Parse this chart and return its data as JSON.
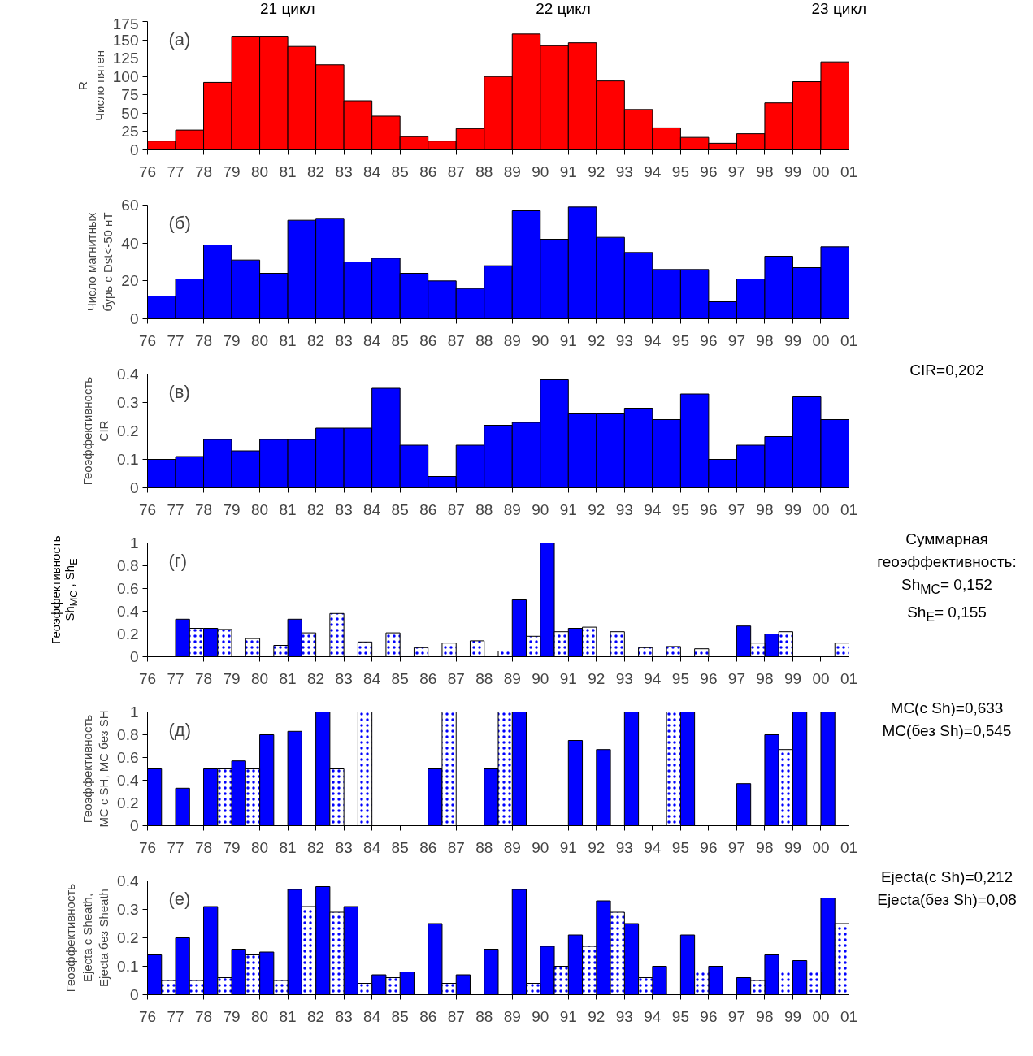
{
  "chart_data": [
    {
      "type": "histogram",
      "ylabel": "R\nЧисло пятен",
      "color": "#ff0000",
      "bins": [
        1976,
        1977,
        1978,
        1979,
        1980,
        1981,
        1982,
        1983,
        1984,
        1985,
        1986,
        1987,
        1988,
        1989,
        1990,
        1991,
        1992,
        1993,
        1994,
        1995,
        1996,
        1997,
        1998,
        1999,
        2000,
        2001
      ],
      "values": [
        12,
        27,
        92,
        155,
        155,
        141,
        116,
        67,
        46,
        18,
        12,
        29,
        100,
        158,
        142,
        146,
        94,
        55,
        30,
        17,
        9,
        22,
        64,
        93,
        120
      ],
      "xlim": [
        1976,
        2001
      ],
      "ylim": [
        0,
        175
      ],
      "yticks": [
        0,
        25,
        50,
        75,
        100,
        125,
        150,
        175
      ],
      "xticks": [
        {
          "value": 1976,
          "label": "76"
        },
        {
          "value": 1977,
          "label": "77"
        },
        {
          "value": 1978,
          "label": "78"
        },
        {
          "value": 1979,
          "label": "79"
        },
        {
          "value": 1980,
          "label": "80"
        },
        {
          "value": 1981,
          "label": "81"
        },
        {
          "value": 1982,
          "label": "82"
        },
        {
          "value": 1983,
          "label": "83"
        },
        {
          "value": 1984,
          "label": "84"
        },
        {
          "value": 1985,
          "label": "85"
        },
        {
          "value": 1986,
          "label": "86"
        },
        {
          "value": 1987,
          "label": "87"
        },
        {
          "value": 1988,
          "label": "88"
        },
        {
          "value": 1989,
          "label": "89"
        },
        {
          "value": 1990,
          "label": "90"
        },
        {
          "value": 1991,
          "label": "91"
        },
        {
          "value": 1992,
          "label": "92"
        },
        {
          "value": 1993,
          "label": "93"
        },
        {
          "value": 1994,
          "label": "94"
        },
        {
          "value": 1995,
          "label": "95"
        },
        {
          "value": 1996,
          "label": "96"
        },
        {
          "value": 1997,
          "label": "97"
        },
        {
          "value": 1998,
          "label": "98"
        },
        {
          "value": 1999,
          "label": "99"
        },
        {
          "value": 2000,
          "label": "00"
        },
        {
          "value": 2001,
          "label": "01"
        }
      ],
      "annotations": [
        "(а)",
        "21 цикл",
        "22 цикл",
        "23 цикл"
      ]
    },
    {
      "type": "histogram",
      "ylabel": "Число магнитных\nбурь с Dst<-50 нТ",
      "color": "#0000ff",
      "bins": [
        1976,
        1977,
        1978,
        1979,
        1980,
        1981,
        1982,
        1983,
        1984,
        1985,
        1986,
        1987,
        1988,
        1989,
        1990,
        1991,
        1992,
        1993,
        1994,
        1995,
        1996,
        1997,
        1998,
        1999,
        2000,
        2001
      ],
      "values": [
        12,
        21,
        39,
        31,
        24,
        52,
        53,
        30,
        32,
        24,
        20,
        16,
        28,
        57,
        42,
        59,
        43,
        35,
        26,
        26,
        9,
        21,
        33,
        27,
        38
      ],
      "xlim": [
        1976,
        2001
      ],
      "ylim": [
        0,
        60
      ],
      "yticks": [
        0,
        20,
        40,
        60
      ],
      "xticks": [
        {
          "value": 1976,
          "label": "76"
        },
        {
          "value": 1977,
          "label": "77"
        },
        {
          "value": 1978,
          "label": "78"
        },
        {
          "value": 1979,
          "label": "79"
        },
        {
          "value": 1980,
          "label": "80"
        },
        {
          "value": 1981,
          "label": "81"
        },
        {
          "value": 1982,
          "label": "82"
        },
        {
          "value": 1983,
          "label": "83"
        },
        {
          "value": 1984,
          "label": "84"
        },
        {
          "value": 1985,
          "label": "85"
        },
        {
          "value": 1986,
          "label": "86"
        },
        {
          "value": 1987,
          "label": "87"
        },
        {
          "value": 1988,
          "label": "88"
        },
        {
          "value": 1989,
          "label": "89"
        },
        {
          "value": 1990,
          "label": "90"
        },
        {
          "value": 1991,
          "label": "91"
        },
        {
          "value": 1992,
          "label": "92"
        },
        {
          "value": 1993,
          "label": "93"
        },
        {
          "value": 1994,
          "label": "94"
        },
        {
          "value": 1995,
          "label": "95"
        },
        {
          "value": 1996,
          "label": "96"
        },
        {
          "value": 1997,
          "label": "97"
        },
        {
          "value": 1998,
          "label": "98"
        },
        {
          "value": 1999,
          "label": "99"
        },
        {
          "value": 2000,
          "label": "00"
        },
        {
          "value": 2001,
          "label": "01"
        }
      ],
      "annotations": [
        "(б)"
      ]
    },
    {
      "type": "histogram",
      "ylabel": "Геоэффективность\nCIR",
      "color": "#0000ff",
      "bins": [
        1976,
        1977,
        1978,
        1979,
        1980,
        1981,
        1982,
        1983,
        1984,
        1985,
        1986,
        1987,
        1988,
        1989,
        1990,
        1991,
        1992,
        1993,
        1994,
        1995,
        1996,
        1997,
        1998,
        1999,
        2000,
        2001
      ],
      "values": [
        0.1,
        0.11,
        0.17,
        0.13,
        0.17,
        0.17,
        0.21,
        0.21,
        0.35,
        0.15,
        0.04,
        0.15,
        0.22,
        0.23,
        0.38,
        0.26,
        0.26,
        0.28,
        0.24,
        0.33,
        0.1,
        0.15,
        0.18,
        0.32,
        0.24
      ],
      "xlim": [
        1976,
        2001
      ],
      "ylim": [
        0,
        0.4
      ],
      "yticks": [
        0,
        0.1,
        0.2,
        0.3,
        0.4
      ],
      "xticks": [
        {
          "value": 1976,
          "label": "76"
        },
        {
          "value": 1977,
          "label": "77"
        },
        {
          "value": 1978,
          "label": "78"
        },
        {
          "value": 1979,
          "label": "79"
        },
        {
          "value": 1980,
          "label": "80"
        },
        {
          "value": 1981,
          "label": "81"
        },
        {
          "value": 1982,
          "label": "82"
        },
        {
          "value": 1983,
          "label": "83"
        },
        {
          "value": 1984,
          "label": "84"
        },
        {
          "value": 1985,
          "label": "85"
        },
        {
          "value": 1986,
          "label": "86"
        },
        {
          "value": 1987,
          "label": "87"
        },
        {
          "value": 1988,
          "label": "88"
        },
        {
          "value": 1989,
          "label": "89"
        },
        {
          "value": 1990,
          "label": "90"
        },
        {
          "value": 1991,
          "label": "91"
        },
        {
          "value": 1992,
          "label": "92"
        },
        {
          "value": 1993,
          "label": "93"
        },
        {
          "value": 1994,
          "label": "94"
        },
        {
          "value": 1995,
          "label": "95"
        },
        {
          "value": 1996,
          "label": "96"
        },
        {
          "value": 1997,
          "label": "97"
        },
        {
          "value": 1998,
          "label": "98"
        },
        {
          "value": 1999,
          "label": "99"
        },
        {
          "value": 2000,
          "label": "00"
        },
        {
          "value": 2001,
          "label": "01"
        }
      ],
      "annotations": [
        "(в)",
        "CIR=0,202"
      ]
    },
    {
      "type": "bar",
      "ylabel": "Геоэффективность\nSh$_{MC}$ , Sh$_{E}$",
      "xlim": [
        1976,
        2001
      ],
      "ylim": [
        0,
        1
      ],
      "yticks": [
        0,
        0.2,
        0.4,
        0.6,
        0.8,
        1
      ],
      "series": [
        {
          "color": "#0000ff",
          "x": [
            1977.25,
            1978.25,
            1981.25,
            1989.25,
            1990.25,
            1991.25,
            1997.25,
            1998.25
          ],
          "values": [
            0.33,
            0.25,
            0.33,
            0.5,
            1,
            0.25,
            0.27,
            0.2
          ]
        },
        {
          "color": "#ffffff",
          "x": [
            1977.75,
            1978.75,
            1979.75,
            1980.75,
            1981.75,
            1982.75,
            1983.75,
            1984.75,
            1985.75,
            1986.75,
            1987.75,
            1988.75,
            1989.75,
            1990.75,
            1991.75,
            1992.75,
            1993.75,
            1994.75,
            1995.75,
            1997.75,
            1998.75,
            2000.75
          ],
          "values": [
            0.25,
            0.24,
            0.16,
            0.1,
            0.21,
            0.38,
            0.13,
            0.21,
            0.08,
            0.12,
            0.14,
            0.05,
            0.18,
            0.22,
            0.26,
            0.22,
            0.08,
            0.09,
            0.07,
            0.12,
            0.22,
            0.12
          ]
        }
      ],
      "xticks": [
        {
          "value": 1976,
          "label": "76"
        },
        {
          "value": 1977,
          "label": "77"
        },
        {
          "value": 1978,
          "label": "78"
        },
        {
          "value": 1979,
          "label": "79"
        },
        {
          "value": 1980,
          "label": "80"
        },
        {
          "value": 1981,
          "label": "81"
        },
        {
          "value": 1982,
          "label": "82"
        },
        {
          "value": 1983,
          "label": "83"
        },
        {
          "value": 1984,
          "label": "84"
        },
        {
          "value": 1985,
          "label": "85"
        },
        {
          "value": 1986,
          "label": "86"
        },
        {
          "value": 1987,
          "label": "87"
        },
        {
          "value": 1988,
          "label": "88"
        },
        {
          "value": 1989,
          "label": "89"
        },
        {
          "value": 1990,
          "label": "90"
        },
        {
          "value": 1991,
          "label": "91"
        },
        {
          "value": 1992,
          "label": "92"
        },
        {
          "value": 1993,
          "label": "93"
        },
        {
          "value": 1994,
          "label": "94"
        },
        {
          "value": 1995,
          "label": "95"
        },
        {
          "value": 1996,
          "label": "96"
        },
        {
          "value": 1997,
          "label": "97"
        },
        {
          "value": 1998,
          "label": "98"
        },
        {
          "value": 1999,
          "label": "99"
        },
        {
          "value": 2000,
          "label": "00"
        },
        {
          "value": 2001,
          "label": "01"
        }
      ],
      "annotations": [
        "(г)",
        "Суммарная геоэффективность:",
        "Sh$_{MC}$= 0,152",
        "Sh$_{E}$= 0,155"
      ]
    },
    {
      "type": "bar",
      "ylabel": "Геоэффективность\nMC с SH, MC без SH",
      "xlim": [
        1976,
        2001
      ],
      "ylim": [
        0,
        1
      ],
      "yticks": [
        0,
        0.2,
        0.4,
        0.6,
        0.8,
        1
      ],
      "series": [
        {
          "color": "#0000ff",
          "x": [
            1976.25,
            1977.25,
            1978.25,
            1979.25,
            1980.25,
            1981.25,
            1982.25,
            1986.25,
            1988.25,
            1989.25,
            1991.25,
            1992.25,
            1993.25,
            1995.25,
            1997.25,
            1998.25,
            1999.25,
            2000.25
          ],
          "values": [
            0.5,
            0.33,
            0.5,
            0.57,
            0.8,
            0.83,
            1,
            0.5,
            0.5,
            1,
            0.75,
            0.67,
            1,
            1,
            0.37,
            0.8,
            1,
            1
          ]
        },
        {
          "color": "#ffffff",
          "x": [
            1978.75,
            1979.75,
            1982.75,
            1983.75,
            1986.75,
            1988.75,
            1994.75,
            1998.75
          ],
          "values": [
            0.5,
            0.5,
            0.5,
            1,
            1,
            1,
            1,
            0.67
          ]
        }
      ],
      "xticks": [
        {
          "value": 1976,
          "label": "76"
        },
        {
          "value": 1977,
          "label": "77"
        },
        {
          "value": 1978,
          "label": "78"
        },
        {
          "value": 1979,
          "label": "79"
        },
        {
          "value": 1980,
          "label": "80"
        },
        {
          "value": 1981,
          "label": "81"
        },
        {
          "value": 1982,
          "label": "82"
        },
        {
          "value": 1983,
          "label": "83"
        },
        {
          "value": 1984,
          "label": "84"
        },
        {
          "value": 1985,
          "label": "85"
        },
        {
          "value": 1986,
          "label": "86"
        },
        {
          "value": 1987,
          "label": "87"
        },
        {
          "value": 1988,
          "label": "88"
        },
        {
          "value": 1989,
          "label": "89"
        },
        {
          "value": 1990,
          "label": "90"
        },
        {
          "value": 1991,
          "label": "91"
        },
        {
          "value": 1992,
          "label": "92"
        },
        {
          "value": 1993,
          "label": "93"
        },
        {
          "value": 1994,
          "label": "94"
        },
        {
          "value": 1995,
          "label": "95"
        },
        {
          "value": 1996,
          "label": "96"
        },
        {
          "value": 1997,
          "label": "97"
        },
        {
          "value": 1998,
          "label": "98"
        },
        {
          "value": 1999,
          "label": "99"
        },
        {
          "value": 2000,
          "label": "00"
        },
        {
          "value": 2001,
          "label": "01"
        }
      ],
      "annotations": [
        "(д)",
        "MC(с Sh)=0,633",
        "MC(без Sh)=0,545"
      ]
    },
    {
      "type": "bar",
      "ylabel": "Геоэффективность\nEjecta с Sheath,\nEjecta без Sheath",
      "xlim": [
        1976,
        2001
      ],
      "ylim": [
        0,
        0.4
      ],
      "yticks": [
        0,
        0.1,
        0.2,
        0.3,
        0.4
      ],
      "series": [
        {
          "color": "#0000ff",
          "x": [
            1976.25,
            1977.25,
            1978.25,
            1979.25,
            1980.25,
            1981.25,
            1982.25,
            1983.25,
            1984.25,
            1985.25,
            1986.25,
            1987.25,
            1988.25,
            1989.25,
            1990.25,
            1991.25,
            1992.25,
            1993.25,
            1994.25,
            1995.25,
            1996.25,
            1997.25,
            1998.25,
            1999.25,
            2000.25
          ],
          "values": [
            0.14,
            0.2,
            0.31,
            0.16,
            0.15,
            0.37,
            0.38,
            0.31,
            0.07,
            0.08,
            0.25,
            0.07,
            0.16,
            0.37,
            0.17,
            0.21,
            0.33,
            0.25,
            0.1,
            0.21,
            0.1,
            0.06,
            0.14,
            0.12,
            0.34
          ]
        },
        {
          "color": "#ffffff",
          "x": [
            1976.75,
            1977.75,
            1978.75,
            1979.75,
            1980.75,
            1981.75,
            1982.75,
            1983.75,
            1984.75,
            1986.75,
            1989.75,
            1990.75,
            1991.75,
            1992.75,
            1993.75,
            1995.75,
            1997.75,
            1998.75,
            1999.75,
            2000.75
          ],
          "values": [
            0.05,
            0.05,
            0.06,
            0.14,
            0.05,
            0.31,
            0.29,
            0.04,
            0.06,
            0.04,
            0.04,
            0.1,
            0.17,
            0.29,
            0.06,
            0.08,
            0.05,
            0.08,
            0.08,
            0.25
          ]
        }
      ],
      "xticks": [
        {
          "value": 1976,
          "label": "76"
        },
        {
          "value": 1977,
          "label": "77"
        },
        {
          "value": 1978,
          "label": "78"
        },
        {
          "value": 1979,
          "label": "79"
        },
        {
          "value": 1980,
          "label": "80"
        },
        {
          "value": 1981,
          "label": "81"
        },
        {
          "value": 1982,
          "label": "82"
        },
        {
          "value": 1983,
          "label": "83"
        },
        {
          "value": 1984,
          "label": "84"
        },
        {
          "value": 1985,
          "label": "85"
        },
        {
          "value": 1986,
          "label": "86"
        },
        {
          "value": 1987,
          "label": "87"
        },
        {
          "value": 1988,
          "label": "88"
        },
        {
          "value": 1989,
          "label": "89"
        },
        {
          "value": 1990,
          "label": "90"
        },
        {
          "value": 1991,
          "label": "91"
        },
        {
          "value": 1992,
          "label": "92"
        },
        {
          "value": 1993,
          "label": "93"
        },
        {
          "value": 1994,
          "label": "94"
        },
        {
          "value": 1995,
          "label": "95"
        },
        {
          "value": 1996,
          "label": "96"
        },
        {
          "value": 1997,
          "label": "97"
        },
        {
          "value": 1998,
          "label": "98"
        },
        {
          "value": 1999,
          "label": "99"
        },
        {
          "value": 2000,
          "label": "00"
        },
        {
          "value": 2001,
          "label": "01"
        }
      ],
      "annotations": [
        "(е)",
        "Ejecta(с Sh)=0,212",
        "Ejecta(без Sh)=0,08"
      ]
    }
  ]
}
